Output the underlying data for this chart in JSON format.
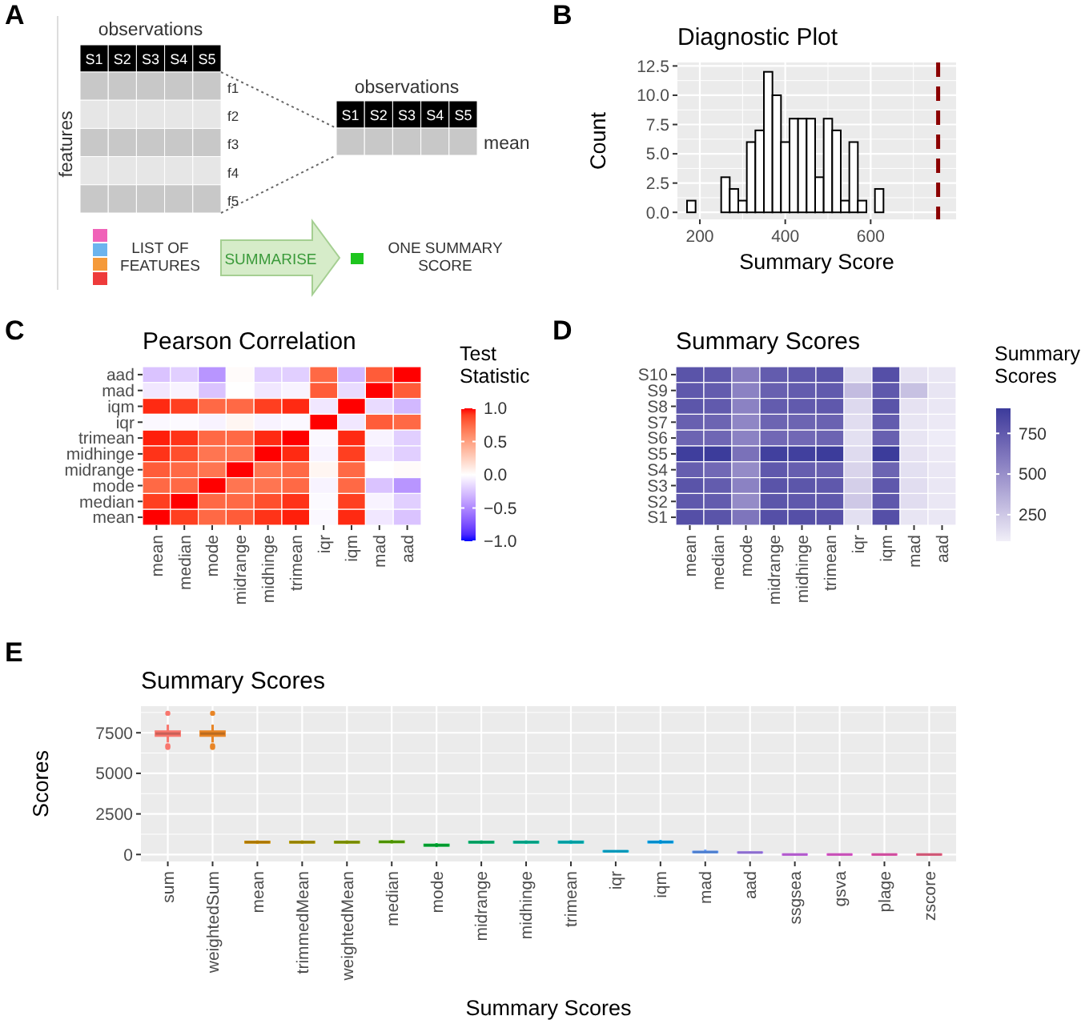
{
  "chart_data": [
    {
      "type": "other",
      "annotations": [
        "A",
        "observations",
        "S1",
        "S2",
        "S3",
        "S4",
        "S5",
        "f1",
        "f2",
        "f3",
        "f4",
        "f5",
        "features",
        "observations",
        "S1",
        "S2",
        "S3",
        "S4",
        "S5",
        "mean",
        "LIST OF FEATURES",
        "SUMMARISE",
        "ONE SUMMARY SCORE"
      ]
    },
    {
      "type": "histogram",
      "title": "Diagnostic Plot",
      "xlabel": "Summary Score",
      "ylabel": "Count",
      "annotations": [
        "B"
      ],
      "color": "#ffffff",
      "bins": [
        170,
        190,
        210,
        230,
        250,
        270,
        290,
        310,
        330,
        350,
        370,
        390,
        410,
        430,
        450,
        470,
        490,
        510,
        530,
        550,
        570,
        590,
        610,
        630,
        650,
        670,
        690,
        710,
        730,
        750,
        770
      ],
      "values": [
        1,
        0,
        0,
        0,
        3,
        2,
        1,
        6,
        7,
        12,
        10,
        6,
        8,
        8,
        8,
        3,
        8,
        7,
        1,
        6,
        1,
        0,
        2,
        0,
        0,
        0,
        0,
        0,
        0,
        0
      ],
      "xlim": [
        147.5,
        800
      ],
      "xticks": [
        200,
        400,
        600
      ],
      "ylim": [
        -0.6,
        12.8
      ],
      "yticks": [
        {
          "value": 0,
          "label": "0.0"
        },
        {
          "value": 2.5,
          "label": "2.5"
        },
        {
          "value": 5,
          "label": "5.0"
        },
        {
          "value": 7.5,
          "label": "7.5"
        },
        {
          "value": 10,
          "label": "10.0"
        },
        {
          "value": 12.5,
          "label": "12.5"
        }
      ],
      "grid": true,
      "ref_lines": [
        {
          "axis": "x",
          "value": 758,
          "color": "#8b0000",
          "line_style": "dashed"
        }
      ]
    },
    {
      "type": "heatmap",
      "title": "Pearson Correlation",
      "clabel": "Test Statistic",
      "annotations": [
        "C"
      ],
      "categories": [
        "mean",
        "median",
        "mode",
        "midrange",
        "midhinge",
        "trimean",
        "iqr",
        "iqm",
        "mad",
        "aad"
      ],
      "y_categories": [
        "aad",
        "mad",
        "iqm",
        "iqr",
        "trimean",
        "midhinge",
        "midrange",
        "mode",
        "median",
        "mean"
      ],
      "cells": [
        [
          -0.25,
          -0.2,
          -0.45,
          0.02,
          -0.2,
          -0.2,
          0.75,
          -0.3,
          0.8,
          1
        ],
        [
          -0.1,
          -0.05,
          -0.25,
          0,
          -0.1,
          -0.05,
          0.8,
          -0.15,
          1,
          0.8
        ],
        [
          0.95,
          0.9,
          0.75,
          0.75,
          0.9,
          0.95,
          -0.1,
          1,
          -0.15,
          -0.3
        ],
        [
          -0.03,
          -0.02,
          -0.05,
          0.05,
          -0.05,
          -0.03,
          1,
          -0.1,
          0.8,
          0.75
        ],
        [
          0.97,
          0.93,
          0.75,
          0.75,
          0.95,
          1,
          -0.03,
          0.95,
          -0.05,
          -0.2
        ],
        [
          0.93,
          0.85,
          0.7,
          0.7,
          1,
          0.95,
          -0.05,
          0.9,
          -0.1,
          -0.2
        ],
        [
          0.8,
          0.75,
          0.7,
          1,
          0.7,
          0.75,
          0.05,
          0.75,
          0,
          0.02
        ],
        [
          0.75,
          0.75,
          1,
          0.7,
          0.7,
          0.75,
          -0.05,
          0.75,
          -0.25,
          -0.45
        ],
        [
          0.9,
          1,
          0.75,
          0.75,
          0.85,
          0.93,
          -0.02,
          0.9,
          -0.05,
          -0.2
        ],
        [
          1,
          0.9,
          0.75,
          0.8,
          0.93,
          0.97,
          -0.03,
          0.95,
          -0.1,
          -0.25
        ]
      ],
      "clim": [
        -1,
        1
      ],
      "cticks": [
        {
          "value": 1,
          "label": "1.0"
        },
        {
          "value": 0.5,
          "label": "0.5"
        },
        {
          "value": 0,
          "label": "0.0"
        },
        {
          "value": -0.5,
          "label": "−0.5"
        },
        {
          "value": -1,
          "label": "−1.0"
        }
      ]
    },
    {
      "type": "heatmap",
      "title": "Summary Scores",
      "clabel": "Summary Scores",
      "annotations": [
        "D"
      ],
      "categories": [
        "mean",
        "median",
        "mode",
        "midrange",
        "midhinge",
        "trimean",
        "iqr",
        "iqm",
        "mad",
        "aad"
      ],
      "y_categories": [
        "S10",
        "S9",
        "S8",
        "S7",
        "S6",
        "S5",
        "S4",
        "S3",
        "S2",
        "S1"
      ],
      "cells": [
        [
          780,
          760,
          580,
          740,
          760,
          780,
          150,
          800,
          140,
          120
        ],
        [
          760,
          740,
          560,
          720,
          740,
          750,
          300,
          760,
          280,
          130
        ],
        [
          770,
          750,
          560,
          740,
          750,
          760,
          180,
          780,
          140,
          120
        ],
        [
          720,
          700,
          540,
          700,
          700,
          710,
          160,
          740,
          130,
          110
        ],
        [
          700,
          690,
          560,
          680,
          680,
          700,
          150,
          720,
          130,
          100
        ],
        [
          890,
          900,
          640,
          880,
          880,
          900,
          170,
          900,
          140,
          110
        ],
        [
          730,
          680,
          520,
          760,
          730,
          720,
          200,
          700,
          150,
          120
        ],
        [
          780,
          740,
          560,
          780,
          770,
          760,
          220,
          760,
          160,
          120
        ],
        [
          760,
          740,
          520,
          770,
          760,
          760,
          250,
          760,
          160,
          120
        ],
        [
          800,
          780,
          620,
          800,
          800,
          790,
          150,
          800,
          130,
          120
        ]
      ],
      "clim": [
        87,
        904
      ],
      "cticks": [
        750,
        500,
        250
      ]
    },
    {
      "type": "box",
      "title": "Summary Scores",
      "xlabel": "Summary Scores",
      "ylabel": "Scores",
      "annotations": [
        "E"
      ],
      "categories": [
        "sum",
        "weightedSum",
        "mean",
        "trimmedMean",
        "weightedMean",
        "median",
        "mode",
        "midrange",
        "midhinge",
        "trimean",
        "iqr",
        "iqm",
        "mad",
        "aad",
        "ssgsea",
        "gsva",
        "plage",
        "zscore"
      ],
      "colors": [
        "#f8766d",
        "#e88526",
        "#d39200",
        "#b79f00",
        "#93aa00",
        "#5eb300",
        "#00ba38",
        "#00bf74",
        "#00c19f",
        "#00bfc4",
        "#00b9e3",
        "#00adfa",
        "#619cff",
        "#ae87ff",
        "#db72fb",
        "#f564e3",
        "#ff61c3",
        "#ff6c91"
      ],
      "boxes": [
        {
          "low": 6900,
          "q1": 7300,
          "median": 7450,
          "q3": 7600,
          "high": 8000,
          "outliers": [
            8700,
            6700,
            6600
          ]
        },
        {
          "low": 6900,
          "q1": 7300,
          "median": 7450,
          "q3": 7600,
          "high": 8000,
          "outliers": [
            8700,
            6700,
            6600
          ]
        },
        {
          "low": 650,
          "q1": 720,
          "median": 760,
          "q3": 800,
          "high": 870
        },
        {
          "low": 650,
          "q1": 720,
          "median": 760,
          "q3": 800,
          "high": 870
        },
        {
          "low": 650,
          "q1": 720,
          "median": 760,
          "q3": 800,
          "high": 870
        },
        {
          "low": 680,
          "q1": 740,
          "median": 780,
          "q3": 820,
          "high": 900
        },
        {
          "low": 450,
          "q1": 530,
          "median": 570,
          "q3": 620,
          "high": 700
        },
        {
          "low": 650,
          "q1": 720,
          "median": 760,
          "q3": 800,
          "high": 870
        },
        {
          "low": 650,
          "q1": 720,
          "median": 760,
          "q3": 800,
          "high": 870
        },
        {
          "low": 650,
          "q1": 720,
          "median": 760,
          "q3": 810,
          "high": 880
        },
        {
          "low": 150,
          "q1": 180,
          "median": 200,
          "q3": 220,
          "high": 260
        },
        {
          "low": 650,
          "q1": 730,
          "median": 770,
          "q3": 810,
          "high": 900
        },
        {
          "low": 100,
          "q1": 130,
          "median": 150,
          "q3": 180,
          "high": 300
        },
        {
          "low": 80,
          "q1": 110,
          "median": 120,
          "q3": 140,
          "high": 180
        },
        {
          "low": -60,
          "q1": -20,
          "median": 0,
          "q3": 20,
          "high": 60
        },
        {
          "low": -60,
          "q1": -20,
          "median": 0,
          "q3": 20,
          "high": 60
        },
        {
          "low": -60,
          "q1": -20,
          "median": 0,
          "q3": 20,
          "high": 60
        },
        {
          "low": -60,
          "q1": -20,
          "median": 0,
          "q3": 20,
          "high": 60
        }
      ],
      "ylim": [
        -430,
        9140
      ],
      "yticks": [
        0,
        2500,
        5000,
        7500
      ],
      "grid": true
    }
  ]
}
